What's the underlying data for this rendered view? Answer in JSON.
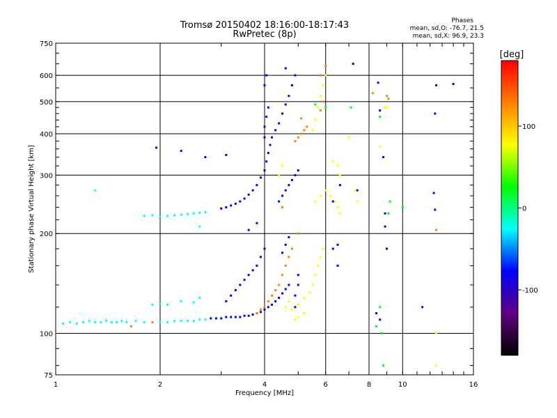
{
  "chart_data": {
    "type": "scatter",
    "title": "Tromsø 20150402 18:16:00-18:17:43",
    "subtitle": "RwPretec (8p)",
    "xlabel": "Frequency [MHz]",
    "ylabel": "Stationary phase Virtual Height [km]",
    "xscale": "log",
    "yscale": "log",
    "xlim": [
      1,
      16
    ],
    "ylim": [
      75,
      750
    ],
    "x_ticks": [
      1,
      2,
      4,
      6,
      8,
      10,
      16
    ],
    "y_ticks": [
      75,
      100,
      200,
      300,
      400,
      500,
      600,
      750
    ],
    "grid": true,
    "stats": {
      "heading": "Phases",
      "line_o": "mean, sd,O: -76.7, 21.5",
      "line_x": "mean, sd,X:  96.9, 23.3"
    },
    "colorbar": {
      "label": "[deg]",
      "range": [
        -180,
        180
      ],
      "ticks": [
        100,
        0,
        -100
      ],
      "colors": [
        "#ff0000",
        "#ff8000",
        "#ffff00",
        "#00ff00",
        "#00ffff",
        "#0000ff",
        "#600080",
        "#000000"
      ]
    },
    "color_scale_note": "phase in degrees",
    "series": [
      {
        "phase": -40,
        "points": [
          [
            1.05,
            107
          ],
          [
            1.1,
            108
          ],
          [
            1.15,
            107
          ],
          [
            1.2,
            108
          ],
          [
            1.25,
            109
          ],
          [
            1.3,
            108
          ],
          [
            1.35,
            108
          ],
          [
            1.4,
            109
          ],
          [
            1.45,
            108
          ],
          [
            1.5,
            108
          ],
          [
            1.55,
            109
          ],
          [
            1.6,
            108
          ],
          [
            1.7,
            109
          ],
          [
            1.8,
            108
          ],
          [
            1.9,
            108
          ],
          [
            2.0,
            108
          ],
          [
            2.1,
            108
          ],
          [
            2.2,
            109
          ],
          [
            2.3,
            109
          ],
          [
            2.4,
            109
          ],
          [
            2.5,
            109
          ],
          [
            2.6,
            110
          ],
          [
            2.7,
            110
          ],
          [
            1.8,
            226
          ],
          [
            1.9,
            227
          ],
          [
            2.0,
            225
          ],
          [
            2.1,
            226
          ],
          [
            2.2,
            227
          ],
          [
            2.3,
            228
          ],
          [
            2.4,
            229
          ],
          [
            2.5,
            230
          ],
          [
            2.6,
            231
          ],
          [
            2.7,
            232
          ],
          [
            1.9,
            122
          ],
          [
            2.0,
            123
          ],
          [
            2.1,
            122
          ],
          [
            2.3,
            125
          ],
          [
            2.5,
            124
          ],
          [
            2.6,
            128
          ],
          [
            1.3,
            270
          ],
          [
            2.6,
            210
          ]
        ]
      },
      {
        "phase": -95,
        "points": [
          [
            2.8,
            111
          ],
          [
            2.9,
            111
          ],
          [
            3.0,
            111
          ],
          [
            3.1,
            112
          ],
          [
            3.2,
            112
          ],
          [
            3.3,
            112
          ],
          [
            3.4,
            112
          ],
          [
            3.5,
            113
          ],
          [
            3.6,
            113
          ],
          [
            3.7,
            114
          ],
          [
            3.8,
            115
          ],
          [
            3.9,
            116
          ],
          [
            4.0,
            118
          ],
          [
            4.1,
            120
          ],
          [
            4.2,
            122
          ],
          [
            4.3,
            125
          ],
          [
            4.4,
            128
          ],
          [
            4.5,
            132
          ],
          [
            4.6,
            136
          ],
          [
            4.7,
            140
          ],
          [
            3.1,
            125
          ],
          [
            3.2,
            130
          ],
          [
            3.3,
            135
          ],
          [
            3.4,
            140
          ],
          [
            3.5,
            145
          ],
          [
            3.6,
            150
          ],
          [
            3.7,
            155
          ],
          [
            3.8,
            160
          ],
          [
            3.9,
            170
          ],
          [
            4.0,
            180
          ],
          [
            3.0,
            238
          ],
          [
            3.1,
            240
          ],
          [
            3.2,
            243
          ],
          [
            3.3,
            246
          ],
          [
            3.4,
            250
          ],
          [
            3.5,
            255
          ],
          [
            3.6,
            262
          ],
          [
            3.7,
            270
          ],
          [
            3.8,
            280
          ],
          [
            3.9,
            295
          ],
          [
            4.0,
            310
          ],
          [
            4.05,
            330
          ],
          [
            4.1,
            350
          ],
          [
            4.15,
            370
          ],
          [
            4.2,
            390
          ],
          [
            4.3,
            410
          ],
          [
            4.4,
            430
          ],
          [
            4.5,
            460
          ],
          [
            4.6,
            490
          ],
          [
            4.7,
            520
          ],
          [
            4.8,
            560
          ],
          [
            4.9,
            600
          ],
          [
            4.0,
            390
          ],
          [
            4.0,
            420
          ],
          [
            4.05,
            450
          ],
          [
            4.1,
            480
          ],
          [
            4.0,
            560
          ],
          [
            4.05,
            600
          ],
          [
            4.6,
            630
          ],
          [
            4.4,
            250
          ],
          [
            4.5,
            260
          ],
          [
            4.6,
            270
          ],
          [
            4.7,
            280
          ],
          [
            4.8,
            290
          ],
          [
            4.9,
            300
          ],
          [
            5.0,
            310
          ],
          [
            4.5,
            175
          ],
          [
            4.6,
            185
          ],
          [
            4.7,
            195
          ],
          [
            6.3,
            250
          ],
          [
            6.3,
            180
          ],
          [
            6.5,
            185
          ],
          [
            6.5,
            160
          ],
          [
            6.6,
            280
          ],
          [
            7.4,
            270
          ],
          [
            2.3,
            355
          ],
          [
            2.7,
            340
          ],
          [
            3.1,
            345
          ],
          [
            1.95,
            363
          ],
          [
            3.6,
            205
          ],
          [
            3.8,
            215
          ],
          [
            5.0,
            140
          ],
          [
            5.0,
            150
          ],
          [
            4.9,
            130
          ],
          [
            4.9,
            120
          ],
          [
            7.2,
            650
          ],
          [
            8.5,
            570
          ],
          [
            8.6,
            470
          ],
          [
            8.8,
            340
          ],
          [
            8.9,
            230
          ],
          [
            8.9,
            210
          ],
          [
            9.0,
            180
          ],
          [
            8.4,
            115
          ],
          [
            8.6,
            110
          ],
          [
            12.5,
            560
          ],
          [
            12.4,
            460
          ],
          [
            12.3,
            265
          ],
          [
            12.4,
            236
          ],
          [
            14.0,
            565
          ],
          [
            11.4,
            120
          ]
        ]
      },
      {
        "phase": 100,
        "points": [
          [
            4.6,
            120
          ],
          [
            4.7,
            125
          ],
          [
            4.8,
            118
          ],
          [
            5.0,
            122
          ],
          [
            5.2,
            128
          ],
          [
            5.4,
            133
          ],
          [
            5.5,
            140
          ],
          [
            5.6,
            150
          ],
          [
            5.7,
            160
          ],
          [
            5.8,
            170
          ],
          [
            5.9,
            180
          ],
          [
            4.9,
            110
          ],
          [
            5.0,
            112
          ],
          [
            5.2,
            115
          ],
          [
            4.4,
            300
          ],
          [
            4.5,
            320
          ],
          [
            5.5,
            410
          ],
          [
            5.6,
            440
          ],
          [
            5.7,
            480
          ],
          [
            5.8,
            520
          ],
          [
            5.9,
            560
          ],
          [
            6.0,
            600
          ],
          [
            5.6,
            250
          ],
          [
            5.8,
            260
          ],
          [
            6.0,
            270
          ],
          [
            6.2,
            260
          ],
          [
            6.4,
            250
          ],
          [
            6.5,
            240
          ],
          [
            6.6,
            230
          ],
          [
            6.3,
            330
          ],
          [
            6.5,
            320
          ],
          [
            6.6,
            300
          ],
          [
            7.0,
            390
          ],
          [
            7.3,
            270
          ],
          [
            7.4,
            250
          ],
          [
            12.5,
            100
          ],
          [
            12.5,
            80
          ],
          [
            8.6,
            365
          ],
          [
            8.9,
            480
          ],
          [
            9.0,
            480
          ]
        ]
      },
      {
        "phase": 150,
        "points": [
          [
            3.8,
            115
          ],
          [
            3.9,
            118
          ],
          [
            4.0,
            120
          ],
          [
            4.1,
            125
          ],
          [
            4.2,
            130
          ],
          [
            4.3,
            135
          ],
          [
            4.4,
            140
          ],
          [
            4.5,
            150
          ],
          [
            4.6,
            160
          ],
          [
            4.7,
            170
          ],
          [
            4.8,
            180
          ],
          [
            5.0,
            390
          ],
          [
            5.1,
            400
          ],
          [
            5.2,
            410
          ],
          [
            5.3,
            420
          ],
          [
            5.1,
            445
          ],
          [
            5.8,
            470
          ],
          [
            5.9,
            500
          ],
          [
            6.0,
            640
          ],
          [
            5.8,
            600
          ],
          [
            4.9,
            380
          ],
          [
            5.0,
            200
          ],
          [
            4.5,
            240
          ],
          [
            1.9,
            108
          ],
          [
            1.65,
            105
          ],
          [
            9.0,
            520
          ],
          [
            9.1,
            510
          ],
          [
            8.2,
            530
          ],
          [
            12.5,
            205
          ]
        ]
      },
      {
        "phase": 40,
        "points": [
          [
            8.6,
            450
          ],
          [
            8.4,
            105
          ],
          [
            8.8,
            80
          ],
          [
            8.7,
            100
          ],
          [
            8.6,
            120
          ],
          [
            9.1,
            230
          ],
          [
            9.2,
            250
          ],
          [
            10.0,
            240
          ],
          [
            7.1,
            480
          ],
          [
            6.0,
            480
          ],
          [
            5.6,
            490
          ]
        ]
      }
    ]
  }
}
